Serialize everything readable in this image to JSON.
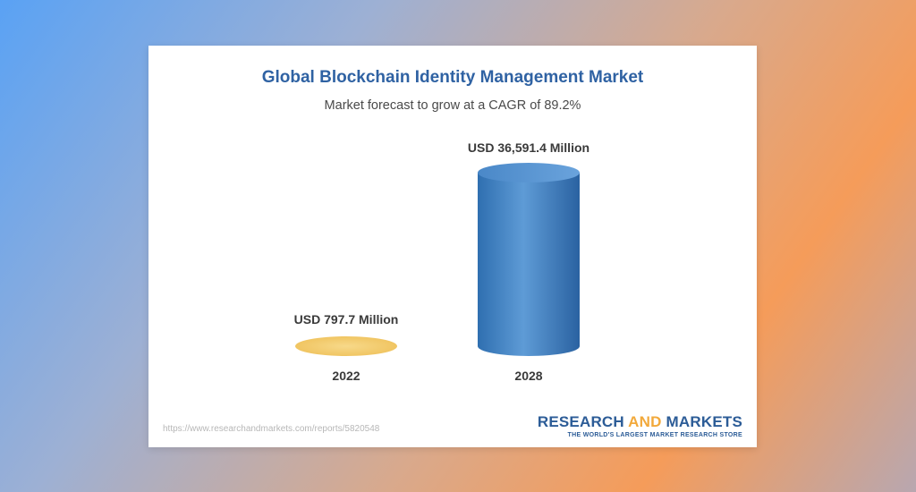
{
  "chart_data": {
    "type": "bar",
    "title": "Global Blockchain Identity Management Market",
    "subtitle": "Market forecast to grow at a CAGR of 89.2%",
    "categories": [
      "2022",
      "2028"
    ],
    "values": [
      797.7,
      36591.4
    ],
    "value_labels": [
      "USD 797.7 Million",
      "USD 36,591.4 Million"
    ],
    "unit": "USD Million",
    "ylim": [
      0,
      36591.4
    ],
    "colors": [
      "#f3c96b",
      "#3e7fc0"
    ],
    "grid": false
  },
  "footer": {
    "url": "https://www.researchandmarkets.com/reports/5820548",
    "brand_part1": "RESEARCH ",
    "brand_part2": "AND",
    "brand_part3": " MARKETS",
    "tagline": "THE WORLD'S LARGEST MARKET RESEARCH STORE"
  }
}
